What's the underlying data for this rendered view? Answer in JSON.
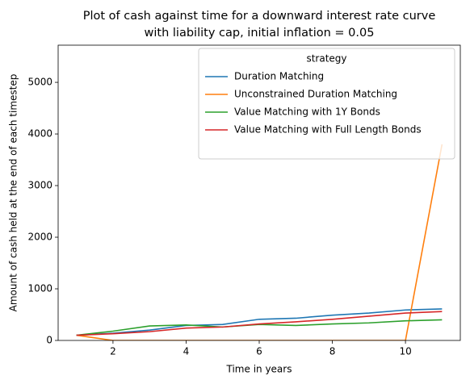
{
  "chart_data": {
    "type": "line",
    "title": [
      "Plot of cash against time for a downward interest rate curve",
      "with liability cap, initial inflation = 0.05"
    ],
    "xlabel": "Time in years",
    "ylabel": "Amount of cash held at the end of each timestep",
    "x": [
      1,
      2,
      3,
      4,
      5,
      6,
      7,
      8,
      9,
      10,
      11
    ],
    "series": [
      {
        "name": "Duration Matching",
        "color": "#1f77b4",
        "values": [
          100,
          140,
          200,
          290,
          310,
          410,
          430,
          490,
          530,
          590,
          610
        ]
      },
      {
        "name": "Unconstrained Duration Matching",
        "color": "#ff7f0e",
        "values": [
          100,
          0,
          0,
          0,
          0,
          0,
          0,
          0,
          0,
          0,
          3800
        ]
      },
      {
        "name": "Value Matching with 1Y Bonds",
        "color": "#2ca02c",
        "values": [
          100,
          180,
          280,
          300,
          260,
          310,
          290,
          320,
          340,
          380,
          400
        ]
      },
      {
        "name": "Value Matching with Full Length Bonds",
        "color": "#d62728",
        "values": [
          100,
          130,
          170,
          240,
          260,
          320,
          360,
          410,
          470,
          530,
          560
        ]
      }
    ],
    "legend_title": "strategy",
    "legend": "upper right",
    "xlim": [
      0.5,
      11.5
    ],
    "xticks": [
      2,
      4,
      6,
      8,
      10
    ],
    "ylim": [
      0,
      5720
    ],
    "yticks": [
      0,
      1000,
      2000,
      3000,
      4000,
      5000
    ],
    "grid": false
  }
}
